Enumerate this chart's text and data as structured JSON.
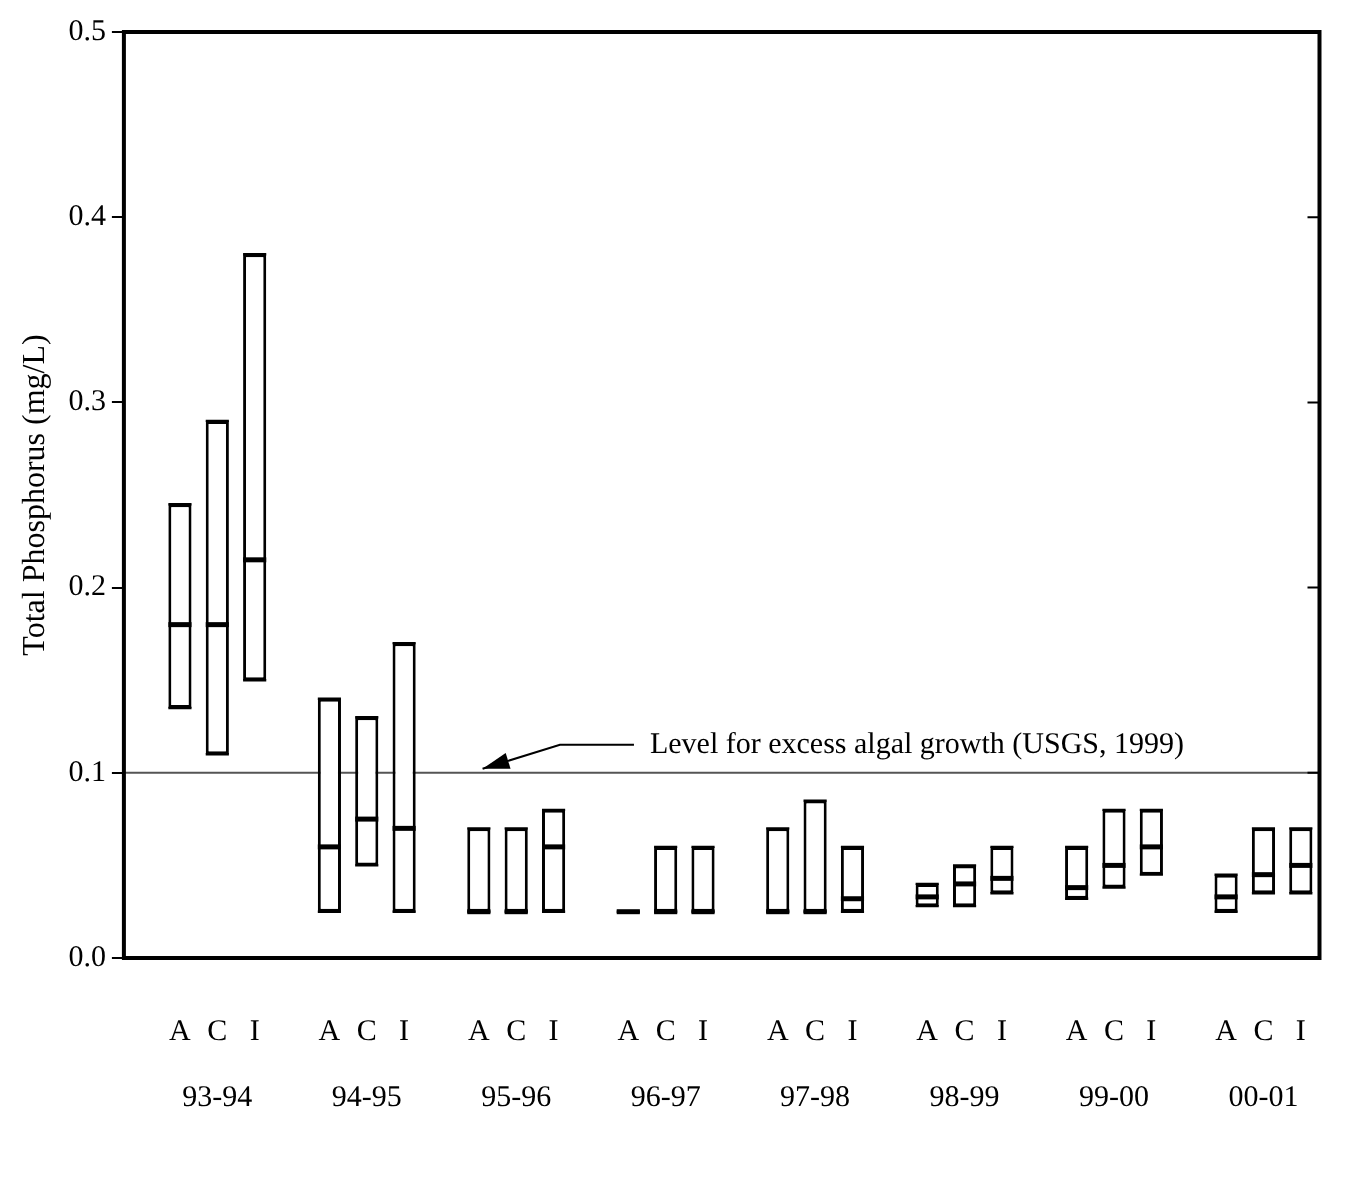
{
  "chart_data": {
    "type": "box",
    "ylabel": "Total Phosphorus (mg/L)",
    "color": "#000000",
    "categories": [
      null,
      "A",
      "C",
      "I",
      null,
      "A",
      "C",
      "I",
      null,
      "A",
      "C",
      "I",
      null,
      "A",
      "C",
      "I",
      null,
      "A",
      "C",
      "I",
      null,
      "A",
      "C",
      "I",
      null,
      "A",
      "C",
      "I",
      null,
      "A",
      "C",
      "I"
    ],
    "boxes": [
      null,
      {
        "low": 0.135,
        "q1": 0.135,
        "median": 0.18,
        "q3": 0.245,
        "high": 0.245
      },
      {
        "low": 0.11,
        "q1": 0.11,
        "median": 0.18,
        "q3": 0.29,
        "high": 0.29
      },
      {
        "low": 0.15,
        "q1": 0.15,
        "median": 0.215,
        "q3": 0.38,
        "high": 0.38
      },
      null,
      {
        "low": 0.025,
        "q1": 0.025,
        "median": 0.06,
        "q3": 0.14,
        "high": 0.14
      },
      {
        "low": 0.05,
        "q1": 0.05,
        "median": 0.075,
        "q3": 0.13,
        "high": 0.13
      },
      {
        "low": 0.025,
        "q1": 0.025,
        "median": 0.07,
        "q3": 0.17,
        "high": 0.17
      },
      null,
      {
        "low": 0.025,
        "q1": 0.025,
        "median": 0.025,
        "q3": 0.07,
        "high": 0.07
      },
      {
        "low": 0.025,
        "q1": 0.025,
        "median": 0.025,
        "q3": 0.07,
        "high": 0.07
      },
      {
        "low": 0.025,
        "q1": 0.025,
        "median": 0.06,
        "q3": 0.08,
        "high": 0.08
      },
      null,
      {
        "low": 0.025,
        "q1": 0.025,
        "median": 0.025,
        "q3": 0.025,
        "high": 0.025
      },
      {
        "low": 0.025,
        "q1": 0.025,
        "median": 0.025,
        "q3": 0.06,
        "high": 0.06
      },
      {
        "low": 0.025,
        "q1": 0.025,
        "median": 0.025,
        "q3": 0.06,
        "high": 0.06
      },
      null,
      {
        "low": 0.025,
        "q1": 0.025,
        "median": 0.025,
        "q3": 0.07,
        "high": 0.07
      },
      {
        "low": 0.025,
        "q1": 0.025,
        "median": 0.025,
        "q3": 0.085,
        "high": 0.085
      },
      {
        "low": 0.025,
        "q1": 0.025,
        "median": 0.032,
        "q3": 0.06,
        "high": 0.06
      },
      null,
      {
        "low": 0.028,
        "q1": 0.028,
        "median": 0.033,
        "q3": 0.04,
        "high": 0.04
      },
      {
        "low": 0.028,
        "q1": 0.028,
        "median": 0.04,
        "q3": 0.05,
        "high": 0.05
      },
      {
        "low": 0.035,
        "q1": 0.035,
        "median": 0.043,
        "q3": 0.06,
        "high": 0.06
      },
      null,
      {
        "low": 0.032,
        "q1": 0.032,
        "median": 0.038,
        "q3": 0.06,
        "high": 0.06
      },
      {
        "low": 0.038,
        "q1": 0.038,
        "median": 0.05,
        "q3": 0.08,
        "high": 0.08
      },
      {
        "low": 0.045,
        "q1": 0.045,
        "median": 0.06,
        "q3": 0.08,
        "high": 0.08
      },
      null,
      {
        "low": 0.025,
        "q1": 0.025,
        "median": 0.033,
        "q3": 0.045,
        "high": 0.045
      },
      {
        "low": 0.035,
        "q1": 0.035,
        "median": 0.045,
        "q3": 0.07,
        "high": 0.07
      },
      {
        "low": 0.035,
        "q1": 0.035,
        "median": 0.05,
        "q3": 0.07,
        "high": 0.07
      }
    ],
    "ylim": [
      0,
      0.5
    ],
    "yticks": [
      {
        "value": 0,
        "label": "0.0"
      },
      {
        "value": 0.1,
        "label": "0.1"
      },
      {
        "value": 0.2,
        "label": "0.2"
      },
      {
        "value": 0.3,
        "label": "0.3"
      },
      {
        "value": 0.4,
        "label": "0.4"
      },
      {
        "value": 0.5,
        "label": "0.5"
      }
    ],
    "ref_lines": [
      {
        "axis": "y",
        "value": 0.1,
        "label": "Level for excess algal growth (USGS, 1999)",
        "color": "#555555"
      }
    ],
    "annotations": [
      "93-94",
      "94-95",
      "95-96",
      "96-97",
      "97-98",
      "98-99",
      "99-00",
      "00-01"
    ],
    "legend": false
  }
}
